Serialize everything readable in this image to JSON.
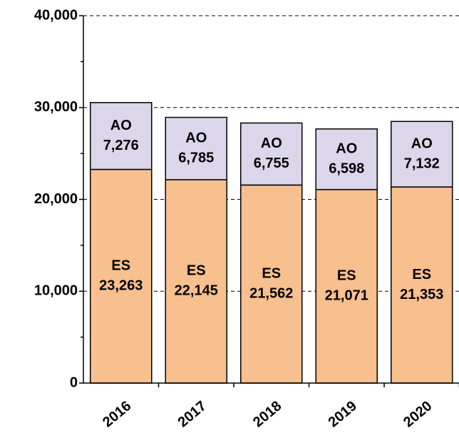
{
  "chart_data": {
    "type": "stacked_bar",
    "categories": [
      "2016",
      "2017",
      "2018",
      "2019",
      "2020"
    ],
    "series": [
      {
        "name": "ES",
        "color": "#f8bf8f",
        "values": [
          23263,
          22145,
          21562,
          21071,
          21353
        ],
        "value_labels": [
          "23,263",
          "22,145",
          "21,562",
          "21,071",
          "21,353"
        ]
      },
      {
        "name": "AO",
        "color": "#dcd6ea",
        "values": [
          7276,
          6785,
          6755,
          6598,
          7132
        ],
        "value_labels": [
          "7,276",
          "6,785",
          "6,755",
          "6,598",
          "7,132"
        ]
      }
    ],
    "ylim": [
      0,
      40000
    ],
    "yticks": [
      0,
      {
        "value": 10000,
        "label": "10,000"
      },
      {
        "value": 20000,
        "label": "20,000"
      },
      {
        "value": 30000,
        "label": "30,000"
      },
      {
        "value": 40000,
        "label": "40,000"
      }
    ],
    "grid": true
  }
}
